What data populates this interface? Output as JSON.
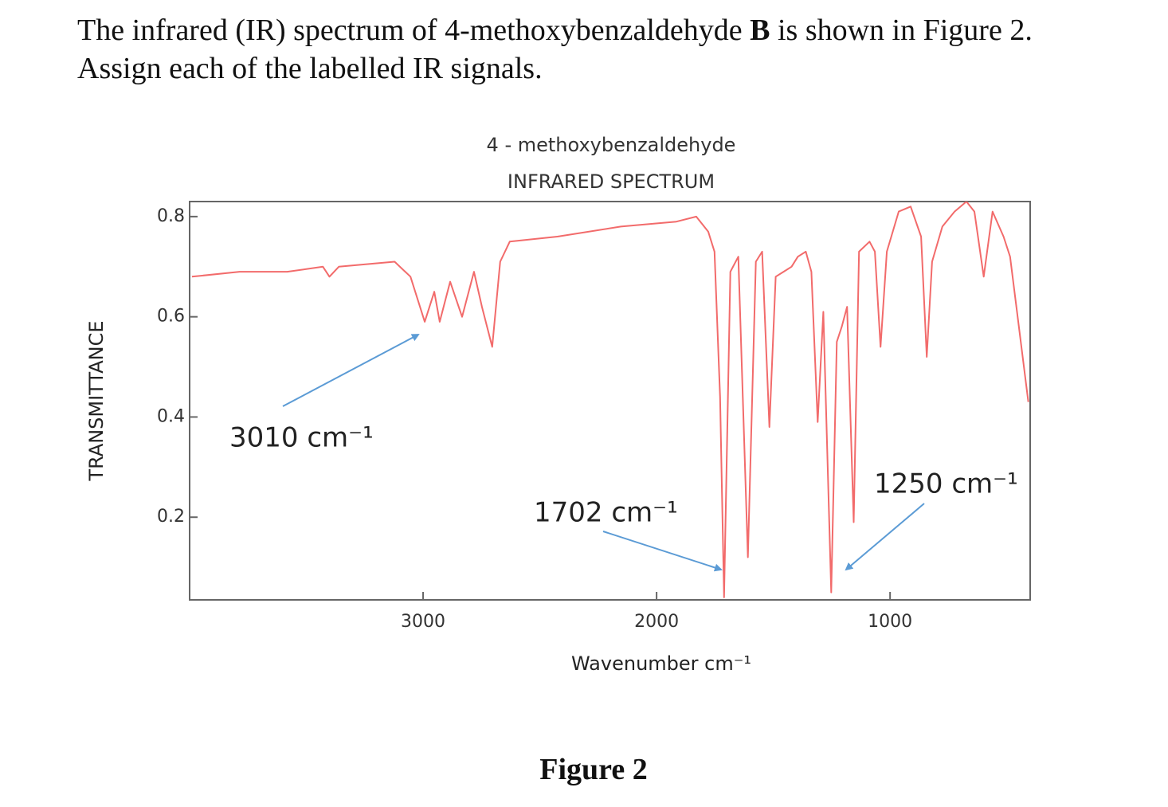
{
  "question": {
    "line1": [
      "The infrared (IR) spectrum of 4-methoxybenzaldehyde ",
      "B",
      " is shown in Figure 2."
    ],
    "line2": "Assign each of the labelled IR signals."
  },
  "caption": "Figure 2",
  "chart_data": {
    "type": "line",
    "title": "4 - methoxybenzaldehyde",
    "subtitle": "INFRARED SPECTRUM",
    "x_label": "Wavenumber cm⁻¹",
    "y_label": "TRANSMITTANCE",
    "color": "#f26b6b",
    "xlim": [
      4000,
      400
    ],
    "ylim": [
      0.035,
      0.83
    ],
    "xticks": [
      3000,
      2000,
      1000
    ],
    "yticks": [
      0.8,
      0.6,
      0.4,
      0.2
    ],
    "x": [
      3990,
      3786,
      3582,
      3429,
      3401,
      3361,
      3122,
      3054,
      2993,
      2952,
      2929,
      2884,
      2833,
      2782,
      2748,
      2704,
      2670,
      2629,
      2425,
      2153,
      1915,
      1830,
      1779,
      1752,
      1728,
      1711,
      1684,
      1650,
      1609,
      1575,
      1548,
      1517,
      1490,
      1456,
      1422,
      1395,
      1361,
      1337,
      1310,
      1286,
      1252,
      1228,
      1207,
      1184,
      1156,
      1133,
      1088,
      1065,
      1041,
      1014,
      963,
      912,
      867,
      843,
      820,
      776,
      724,
      673,
      639,
      599,
      561,
      514,
      486,
      408
    ],
    "values": [
      0.68,
      0.69,
      0.69,
      0.7,
      0.68,
      0.7,
      0.71,
      0.68,
      0.59,
      0.65,
      0.59,
      0.67,
      0.6,
      0.69,
      0.62,
      0.54,
      0.71,
      0.75,
      0.76,
      0.78,
      0.79,
      0.8,
      0.77,
      0.73,
      0.44,
      0.04,
      0.69,
      0.72,
      0.12,
      0.71,
      0.73,
      0.38,
      0.68,
      0.69,
      0.7,
      0.72,
      0.73,
      0.69,
      0.39,
      0.61,
      0.05,
      0.55,
      0.58,
      0.62,
      0.19,
      0.73,
      0.75,
      0.73,
      0.54,
      0.73,
      0.81,
      0.82,
      0.76,
      0.52,
      0.71,
      0.78,
      0.81,
      0.83,
      0.81,
      0.68,
      0.81,
      0.76,
      0.72,
      0.43
    ],
    "annotations": [
      "3010 cm⁻¹",
      "1702 cm⁻¹",
      "1250 cm⁻¹"
    ]
  }
}
